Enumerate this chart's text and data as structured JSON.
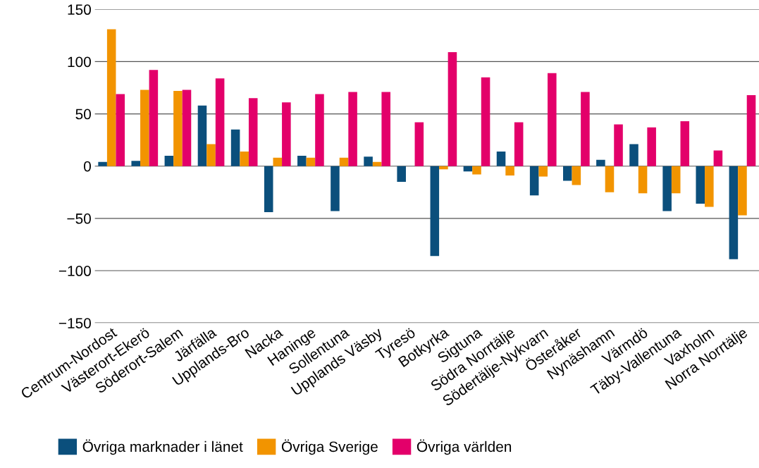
{
  "chart_data": {
    "type": "bar",
    "categories": [
      "Centrum-Nordost",
      "Västerort-Ekerö",
      "Söderort-Salem",
      "Järfälla",
      "Upplands-Bro",
      "Nacka",
      "Haninge",
      "Sollentuna",
      "Upplands Väsby",
      "Tyresö",
      "Botkyrka",
      "Sigtuna",
      "Södra Norrtälje",
      "Södertälje-Nykvarn",
      "Österåker",
      "Nynäshamn",
      "Värmdö",
      "Täby-Vallentuna",
      "Vaxholm",
      "Norra Norrtälje"
    ],
    "series": [
      {
        "name": "Övriga marknader i länet",
        "color": "#0b4f7c",
        "values": [
          4,
          5,
          10,
          58,
          35,
          -44,
          10,
          -43,
          9,
          -15,
          -86,
          -5,
          14,
          -28,
          -14,
          6,
          21,
          -43,
          -36,
          -89
        ]
      },
      {
        "name": "Övriga Sverige",
        "color": "#f29400",
        "values": [
          131,
          73,
          72,
          21,
          14,
          8,
          8,
          8,
          4,
          0,
          -3,
          -8,
          -9,
          -10,
          -18,
          -25,
          -26,
          -26,
          -39,
          -47
        ]
      },
      {
        "name": "Övriga världen",
        "color": "#e3006a",
        "values": [
          69,
          92,
          73,
          84,
          65,
          61,
          69,
          71,
          71,
          42,
          109,
          85,
          42,
          89,
          71,
          40,
          37,
          43,
          15,
          68
        ]
      }
    ],
    "ylim": [
      -150,
      150
    ],
    "yticks": [
      {
        "value": -150,
        "label": "−150"
      },
      {
        "value": -100,
        "label": "−100"
      },
      {
        "value": -50,
        "label": "−50"
      },
      0,
      50,
      100,
      150
    ],
    "grid": "y",
    "legend": "bottom left"
  }
}
